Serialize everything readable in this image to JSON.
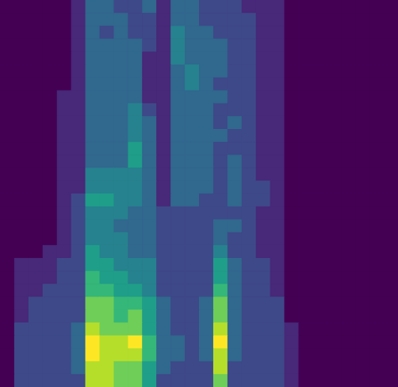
{
  "chart_data": {
    "type": "heatmap",
    "color": "viridis",
    "tick_labels": false,
    "cells": [
      [
        0,
        0,
        0,
        0,
        0,
        1,
        3,
        3,
        2,
        2,
        3,
        1,
        3,
        3,
        2,
        2,
        2,
        1,
        1,
        1,
        0,
        0,
        0,
        0,
        0,
        0,
        0,
        0
      ],
      [
        0,
        0,
        0,
        0,
        0,
        1,
        3,
        3,
        3,
        2,
        2,
        1,
        3,
        3,
        2,
        2,
        2,
        2,
        1,
        1,
        0,
        0,
        0,
        0,
        0,
        0,
        0,
        0
      ],
      [
        0,
        0,
        0,
        0,
        0,
        1,
        3,
        2,
        3,
        2,
        2,
        1,
        4,
        3,
        3,
        2,
        2,
        2,
        1,
        1,
        0,
        0,
        0,
        0,
        0,
        0,
        0,
        0
      ],
      [
        0,
        0,
        0,
        0,
        0,
        1,
        3,
        3,
        3,
        3,
        2,
        1,
        4,
        3,
        3,
        3,
        2,
        2,
        1,
        1,
        0,
        0,
        0,
        0,
        0,
        0,
        0,
        0
      ],
      [
        0,
        0,
        0,
        0,
        0,
        1,
        3,
        3,
        3,
        3,
        1,
        1,
        4,
        3,
        3,
        3,
        2,
        2,
        1,
        1,
        0,
        0,
        0,
        0,
        0,
        0,
        0,
        0
      ],
      [
        0,
        0,
        0,
        0,
        0,
        1,
        3,
        3,
        3,
        3,
        1,
        1,
        3,
        4,
        3,
        3,
        2,
        2,
        1,
        1,
        0,
        0,
        0,
        0,
        0,
        0,
        0,
        0
      ],
      [
        0,
        0,
        0,
        0,
        0,
        1,
        3,
        3,
        3,
        3,
        1,
        1,
        3,
        4,
        3,
        2,
        2,
        2,
        1,
        1,
        0,
        0,
        0,
        0,
        0,
        0,
        0,
        0
      ],
      [
        0,
        0,
        0,
        0,
        1,
        1,
        3,
        3,
        3,
        3,
        1,
        1,
        3,
        3,
        3,
        3,
        2,
        2,
        1,
        1,
        0,
        0,
        0,
        0,
        0,
        0,
        0,
        0
      ],
      [
        0,
        0,
        0,
        0,
        1,
        1,
        3,
        3,
        3,
        4,
        2,
        1,
        3,
        3,
        3,
        2,
        2,
        2,
        1,
        1,
        0,
        0,
        0,
        0,
        0,
        0,
        0,
        0
      ],
      [
        0,
        0,
        0,
        0,
        1,
        1,
        3,
        3,
        3,
        4,
        3,
        1,
        3,
        3,
        3,
        2,
        3,
        2,
        1,
        1,
        0,
        0,
        0,
        0,
        0,
        0,
        0,
        0
      ],
      [
        0,
        0,
        0,
        0,
        1,
        1,
        3,
        3,
        3,
        4,
        3,
        1,
        3,
        3,
        3,
        3,
        2,
        2,
        1,
        1,
        0,
        0,
        0,
        0,
        0,
        0,
        0,
        0
      ],
      [
        0,
        0,
        0,
        0,
        1,
        1,
        3,
        3,
        3,
        5,
        3,
        1,
        3,
        3,
        3,
        2,
        2,
        2,
        1,
        1,
        0,
        0,
        0,
        0,
        0,
        0,
        0,
        0
      ],
      [
        0,
        0,
        0,
        0,
        1,
        1,
        3,
        3,
        3,
        5,
        3,
        1,
        3,
        3,
        3,
        2,
        3,
        2,
        1,
        1,
        0,
        0,
        0,
        0,
        0,
        0,
        0,
        0
      ],
      [
        0,
        0,
        0,
        0,
        1,
        1,
        4,
        4,
        4,
        4,
        3,
        1,
        3,
        3,
        3,
        2,
        3,
        2,
        1,
        1,
        0,
        0,
        0,
        0,
        0,
        0,
        0,
        0
      ],
      [
        0,
        0,
        0,
        0,
        1,
        1,
        4,
        4,
        4,
        4,
        3,
        1,
        3,
        3,
        3,
        2,
        3,
        2,
        2,
        1,
        0,
        0,
        0,
        0,
        0,
        0,
        0,
        0
      ],
      [
        0,
        0,
        0,
        0,
        1,
        2,
        5,
        5,
        4,
        4,
        3,
        1,
        3,
        3,
        2,
        2,
        3,
        2,
        2,
        1,
        0,
        0,
        0,
        0,
        0,
        0,
        0,
        0
      ],
      [
        0,
        0,
        0,
        0,
        1,
        2,
        4,
        4,
        4,
        3,
        3,
        2,
        2,
        2,
        2,
        2,
        2,
        2,
        1,
        1,
        0,
        0,
        0,
        0,
        0,
        0,
        0,
        0
      ],
      [
        0,
        0,
        0,
        0,
        1,
        2,
        4,
        4,
        3,
        3,
        3,
        2,
        2,
        2,
        2,
        3,
        3,
        2,
        1,
        1,
        0,
        0,
        0,
        0,
        0,
        0,
        0,
        0
      ],
      [
        0,
        0,
        0,
        0,
        1,
        2,
        4,
        4,
        4,
        3,
        3,
        2,
        2,
        2,
        2,
        3,
        2,
        2,
        1,
        1,
        0,
        0,
        0,
        0,
        0,
        0,
        0,
        0
      ],
      [
        0,
        0,
        0,
        1,
        1,
        2,
        5,
        4,
        4,
        3,
        3,
        2,
        2,
        2,
        2,
        4,
        2,
        2,
        1,
        1,
        0,
        0,
        0,
        0,
        0,
        0,
        0,
        0
      ],
      [
        0,
        1,
        1,
        1,
        2,
        2,
        5,
        5,
        4,
        4,
        4,
        2,
        2,
        2,
        2,
        5,
        3,
        2,
        2,
        1,
        0,
        0,
        0,
        0,
        0,
        0,
        0,
        0
      ],
      [
        0,
        1,
        1,
        1,
        2,
        2,
        6,
        5,
        5,
        4,
        4,
        2,
        2,
        2,
        2,
        5,
        3,
        2,
        2,
        1,
        0,
        0,
        0,
        0,
        0,
        0,
        0,
        0
      ],
      [
        0,
        1,
        1,
        2,
        2,
        2,
        6,
        6,
        5,
        5,
        4,
        2,
        2,
        2,
        2,
        6,
        3,
        2,
        2,
        1,
        0,
        0,
        0,
        0,
        0,
        0,
        0,
        0
      ],
      [
        0,
        1,
        2,
        2,
        2,
        2,
        7,
        7,
        6,
        6,
        5,
        3,
        2,
        2,
        3,
        7,
        3,
        2,
        2,
        2,
        0,
        0,
        0,
        0,
        0,
        0,
        0,
        0
      ],
      [
        0,
        1,
        2,
        2,
        2,
        2,
        7,
        7,
        6,
        7,
        5,
        3,
        2,
        2,
        3,
        7,
        3,
        2,
        2,
        2,
        0,
        0,
        0,
        0,
        0,
        0,
        0,
        0
      ],
      [
        0,
        2,
        2,
        2,
        2,
        3,
        8,
        7,
        7,
        7,
        5,
        3,
        2,
        2,
        3,
        8,
        3,
        2,
        2,
        2,
        1,
        0,
        0,
        0,
        0,
        0,
        0,
        0
      ],
      [
        0,
        2,
        2,
        2,
        2,
        3,
        9,
        8,
        8,
        9,
        6,
        3,
        3,
        2,
        3,
        9,
        3,
        2,
        2,
        2,
        1,
        0,
        0,
        0,
        0,
        0,
        0,
        0
      ],
      [
        0,
        2,
        2,
        2,
        2,
        3,
        9,
        8,
        8,
        8,
        6,
        3,
        3,
        2,
        3,
        8,
        3,
        2,
        2,
        2,
        1,
        0,
        0,
        0,
        0,
        0,
        0,
        0
      ],
      [
        0,
        2,
        2,
        2,
        2,
        3,
        8,
        8,
        7,
        7,
        5,
        3,
        2,
        2,
        2,
        8,
        2,
        2,
        2,
        2,
        1,
        0,
        0,
        0,
        0,
        0,
        0,
        0
      ],
      [
        0,
        2,
        2,
        2,
        2,
        2,
        8,
        8,
        7,
        7,
        5,
        2,
        2,
        2,
        2,
        7,
        2,
        2,
        2,
        2,
        1,
        0,
        0,
        0,
        0,
        0,
        0,
        0
      ]
    ]
  }
}
